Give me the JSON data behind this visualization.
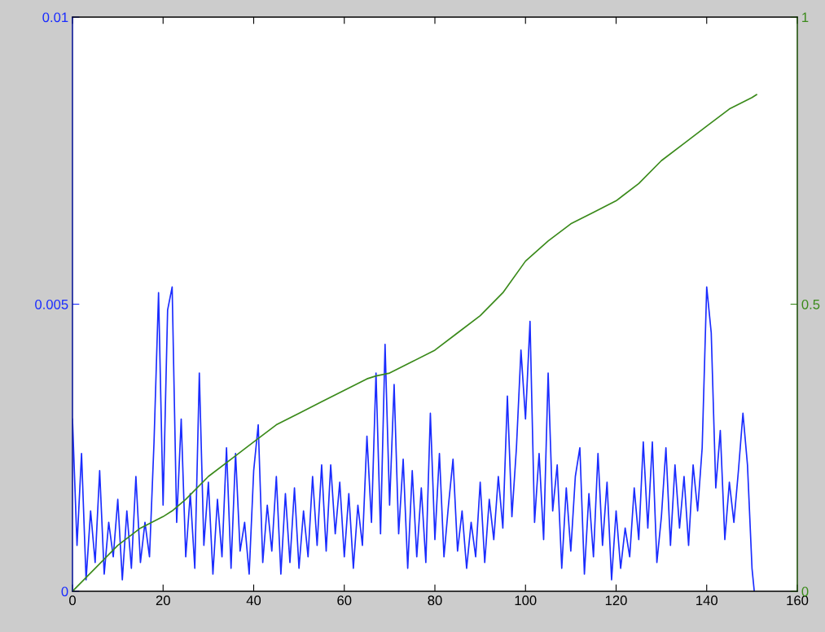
{
  "chart_data": {
    "type": "line",
    "xlim": [
      0,
      160
    ],
    "xticks": [
      0,
      20,
      40,
      60,
      80,
      100,
      120,
      140,
      160
    ],
    "ylim": [
      0,
      0.01
    ],
    "yticks": [
      0,
      0.005,
      0.01
    ],
    "y2lim": [
      0,
      1
    ],
    "y2ticks": [
      0,
      0.5,
      1
    ],
    "grid": false,
    "legend": false,
    "series": [
      {
        "color": "#1a2cff",
        "x": [
          0,
          1,
          2,
          3,
          4,
          5,
          6,
          7,
          8,
          9,
          10,
          11,
          12,
          13,
          14,
          15,
          16,
          17,
          18,
          19,
          20,
          21,
          22,
          23,
          24,
          25,
          26,
          27,
          28,
          29,
          30,
          31,
          32,
          33,
          34,
          35,
          36,
          37,
          38,
          39,
          40,
          41,
          42,
          43,
          44,
          45,
          46,
          47,
          48,
          49,
          50,
          51,
          52,
          53,
          54,
          55,
          56,
          57,
          58,
          59,
          60,
          61,
          62,
          63,
          64,
          65,
          66,
          67,
          68,
          69,
          70,
          71,
          72,
          73,
          74,
          75,
          76,
          77,
          78,
          79,
          80,
          81,
          82,
          83,
          84,
          85,
          86,
          87,
          88,
          89,
          90,
          91,
          92,
          93,
          94,
          95,
          96,
          97,
          98,
          99,
          100,
          101,
          102,
          103,
          104,
          105,
          106,
          107,
          108,
          109,
          110,
          111,
          112,
          113,
          114,
          115,
          116,
          117,
          118,
          119,
          120,
          121,
          122,
          123,
          124,
          125,
          126,
          127,
          128,
          129,
          130,
          131,
          132,
          133,
          134,
          135,
          136,
          137,
          138,
          139,
          140,
          141,
          142,
          143,
          144,
          145,
          146,
          147,
          148,
          149,
          150,
          150.5
        ],
        "values": [
          0.003,
          0.0008,
          0.0024,
          0.0002,
          0.0014,
          0.0005,
          0.0021,
          0.0003,
          0.0012,
          0.0006,
          0.0016,
          0.0002,
          0.0014,
          0.0004,
          0.002,
          0.0005,
          0.0012,
          0.0006,
          0.0026,
          0.0052,
          0.0015,
          0.0049,
          0.0053,
          0.0012,
          0.003,
          0.0006,
          0.0017,
          0.0004,
          0.0038,
          0.0008,
          0.0019,
          0.0003,
          0.0016,
          0.0006,
          0.0025,
          0.0004,
          0.0024,
          0.0007,
          0.0012,
          0.0003,
          0.0021,
          0.0029,
          0.0005,
          0.0015,
          0.0007,
          0.002,
          0.0003,
          0.0017,
          0.0005,
          0.0018,
          0.0004,
          0.0014,
          0.0006,
          0.002,
          0.0008,
          0.0022,
          0.0007,
          0.0022,
          0.001,
          0.0019,
          0.0006,
          0.0017,
          0.0004,
          0.0015,
          0.0008,
          0.0027,
          0.0012,
          0.0038,
          0.001,
          0.0043,
          0.0015,
          0.0036,
          0.001,
          0.0023,
          0.0004,
          0.0021,
          0.0006,
          0.0018,
          0.0005,
          0.0031,
          0.0009,
          0.0024,
          0.0006,
          0.0015,
          0.0023,
          0.0007,
          0.0014,
          0.0004,
          0.0012,
          0.0006,
          0.0019,
          0.0005,
          0.0016,
          0.0009,
          0.002,
          0.0011,
          0.0034,
          0.0013,
          0.0025,
          0.0042,
          0.003,
          0.0047,
          0.0012,
          0.0024,
          0.0009,
          0.0038,
          0.0014,
          0.0022,
          0.0004,
          0.0018,
          0.0007,
          0.002,
          0.0025,
          0.0003,
          0.0017,
          0.0006,
          0.0024,
          0.0008,
          0.0019,
          0.0002,
          0.0014,
          0.0004,
          0.0011,
          0.0006,
          0.0018,
          0.0009,
          0.0026,
          0.0011,
          0.0026,
          0.0005,
          0.0013,
          0.0025,
          0.0008,
          0.0022,
          0.0011,
          0.002,
          0.0008,
          0.0022,
          0.0014,
          0.0025,
          0.0053,
          0.0045,
          0.0018,
          0.0028,
          0.0009,
          0.0019,
          0.0012,
          0.0021,
          0.0031,
          0.0022,
          0.0004,
          0
        ]
      },
      {
        "color": "#3a8a1a",
        "axis": "y2",
        "x": [
          0,
          5,
          10,
          15,
          20,
          22,
          25,
          30,
          35,
          40,
          45,
          50,
          55,
          60,
          65,
          67,
          70,
          75,
          80,
          85,
          90,
          95,
          100,
          105,
          110,
          115,
          120,
          125,
          130,
          135,
          140,
          145,
          150,
          151
        ],
        "values": [
          0,
          0.04,
          0.08,
          0.11,
          0.13,
          0.14,
          0.16,
          0.2,
          0.23,
          0.26,
          0.29,
          0.31,
          0.33,
          0.35,
          0.37,
          0.375,
          0.38,
          0.4,
          0.42,
          0.45,
          0.48,
          0.52,
          0.575,
          0.61,
          0.64,
          0.66,
          0.68,
          0.71,
          0.75,
          0.78,
          0.81,
          0.84,
          0.86,
          0.865
        ]
      }
    ]
  }
}
